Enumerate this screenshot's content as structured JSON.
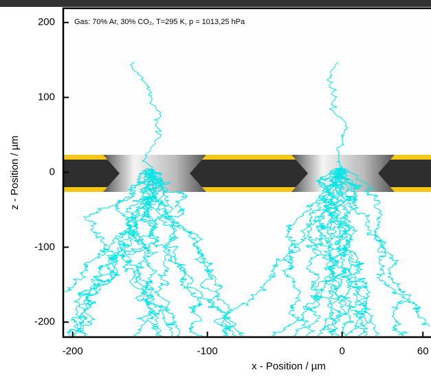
{
  "chart_data": {
    "type": "scatter",
    "title": "Gas: 70% Ar, 30% CO₂, T=295 K, p = 1013,25 hPa",
    "xlabel": "x - Position / µm",
    "ylabel": "z - Position / µm",
    "xlim": [
      -207,
      66
    ],
    "ylim": [
      -220,
      219
    ],
    "xticks": [
      -200,
      -100,
      0,
      60
    ],
    "yticks": [
      200,
      100,
      0,
      -100,
      -200
    ],
    "color": "#00e5e5",
    "grid": false
  }
}
